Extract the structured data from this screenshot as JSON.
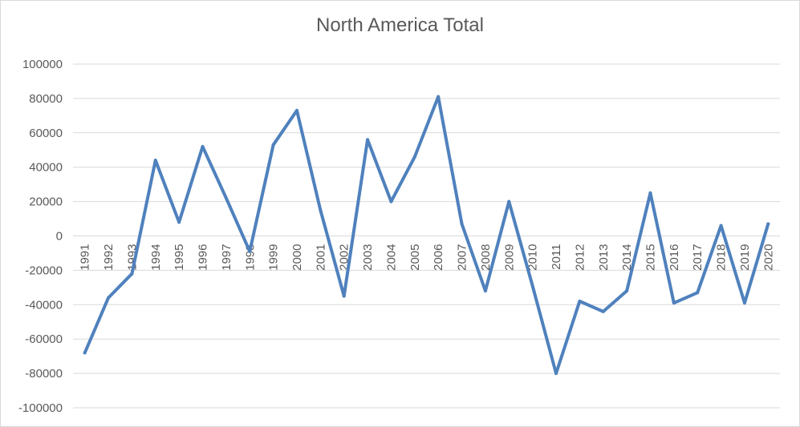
{
  "chart_data": {
    "type": "line",
    "title": "North America Total",
    "xlabel": "",
    "ylabel": "",
    "ylim": [
      -100000,
      100000
    ],
    "y_ticks": [
      "100000",
      "80000",
      "60000",
      "40000",
      "20000",
      "0",
      "-20000",
      "-40000",
      "-60000",
      "-80000",
      "-100000"
    ],
    "categories": [
      "1991",
      "1992",
      "1993",
      "1994",
      "1995",
      "1996",
      "1997",
      "1998",
      "1999",
      "2000",
      "2001",
      "2002",
      "2003",
      "2004",
      "2005",
      "2006",
      "2007",
      "2008",
      "2009",
      "2010",
      "2011",
      "2012",
      "2013",
      "2014",
      "2015",
      "2016",
      "2017",
      "2018",
      "2019",
      "2020"
    ],
    "series": [
      {
        "color": "#4f81bd",
        "values": [
          -68000,
          -36000,
          -22000,
          44000,
          8000,
          52000,
          22000,
          -9000,
          53000,
          73000,
          15000,
          -35000,
          56000,
          20000,
          46000,
          81000,
          7000,
          -32000,
          20000,
          -29000,
          -80000,
          -38000,
          -44000,
          -32000,
          25000,
          -39000,
          -33000,
          6000,
          -39000,
          7000
        ]
      }
    ],
    "grid": "horizontal",
    "legend": "none"
  }
}
